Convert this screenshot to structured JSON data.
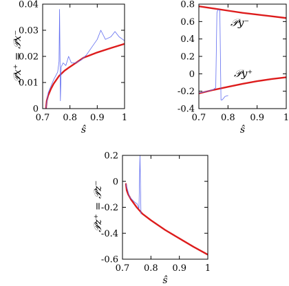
{
  "chart_data": [
    {
      "type": "line",
      "xlabel": "ŝ",
      "ylabel": "𝒫x⁺ = 𝒫x⁻",
      "xlim": [
        0.7,
        1.0
      ],
      "ylim": [
        0,
        0.04
      ],
      "xticks": [
        0.7,
        0.8,
        0.9,
        1.0
      ],
      "xtick_labels": [
        "0.7",
        "0.8",
        "0.9",
        "1"
      ],
      "yticks": [
        0,
        0.01,
        0.02,
        0.03,
        0.04
      ],
      "ytick_labels": [
        "0",
        "0.01",
        "0.02",
        "0.03",
        "0.04"
      ],
      "grid": false,
      "series": [
        {
          "color": "#dd1c1c",
          "width": 2.4,
          "x": [
            0.712,
            0.715,
            0.72,
            0.73,
            0.74,
            0.76,
            0.78,
            0.8,
            0.85,
            0.9,
            0.95,
            1.0
          ],
          "y": [
            0.0,
            0.003,
            0.005,
            0.0075,
            0.0095,
            0.0125,
            0.0145,
            0.016,
            0.0195,
            0.0215,
            0.0232,
            0.0248
          ]
        },
        {
          "color": "#5f6bf0",
          "width": 0.8,
          "x": [
            0.712,
            0.72,
            0.74,
            0.755,
            0.76,
            0.762,
            0.765,
            0.768,
            0.775,
            0.785,
            0.795,
            0.805,
            0.82,
            0.84,
            0.86,
            0.88,
            0.9,
            0.913,
            0.93,
            0.95,
            0.965,
            0.98,
            1.0
          ],
          "y": [
            0.0,
            0.006,
            0.011,
            0.014,
            0.018,
            0.038,
            0.003,
            0.016,
            0.0175,
            0.0165,
            0.02,
            0.0175,
            0.0175,
            0.0185,
            0.0205,
            0.0235,
            0.0265,
            0.03,
            0.0265,
            0.0275,
            0.0295,
            0.0275,
            0.026
          ]
        }
      ]
    },
    {
      "type": "line",
      "xlabel": "ŝ",
      "ylabel": "",
      "xlim": [
        0.7,
        1.0
      ],
      "ylim": [
        -0.4,
        0.8
      ],
      "xticks": [
        0.7,
        0.8,
        0.9,
        1.0
      ],
      "xtick_labels": [
        "0.7",
        "0.8",
        "0.9",
        "1"
      ],
      "yticks": [
        -0.4,
        -0.2,
        0,
        0.2,
        0.4,
        0.6,
        0.8
      ],
      "ytick_labels": [
        "-0.4",
        "-0.2",
        "0",
        "0.2",
        "0.4",
        "0.6",
        "0.8"
      ],
      "grid": false,
      "annotations": [
        "𝒫y⁻",
        "𝒫y⁺"
      ],
      "series": [
        {
          "color": "#dd1c1c",
          "width": 2.4,
          "x": [
            0.7,
            0.75,
            0.8,
            0.85,
            0.9,
            0.95,
            1.0
          ],
          "y": [
            0.775,
            0.75,
            0.725,
            0.7,
            0.68,
            0.66,
            0.64
          ]
        },
        {
          "color": "#dd1c1c",
          "width": 2.4,
          "x": [
            0.7,
            0.75,
            0.8,
            0.85,
            0.9,
            0.95,
            1.0
          ],
          "y": [
            -0.225,
            -0.185,
            -0.15,
            -0.115,
            -0.085,
            -0.06,
            -0.04
          ]
        },
        {
          "color": "#5f6bf0",
          "width": 0.8,
          "x": [
            0.7,
            0.73,
            0.75,
            0.758,
            0.762,
            0.765,
            0.772,
            0.776,
            0.78,
            0.79,
            0.8
          ],
          "y": [
            -0.22,
            -0.2,
            -0.18,
            -0.16,
            0.7,
            0.735,
            0.73,
            -0.3,
            -0.3,
            -0.26,
            -0.25
          ]
        }
      ]
    },
    {
      "type": "line",
      "xlabel": "ŝ",
      "ylabel": "𝒫z⁺ = 𝒫z⁻",
      "xlim": [
        0.7,
        1.0
      ],
      "ylim": [
        -0.6,
        0.2
      ],
      "xticks": [
        0.7,
        0.8,
        0.9,
        1.0
      ],
      "xtick_labels": [
        "0.7",
        "0.8",
        "0.9",
        "1"
      ],
      "yticks": [
        -0.6,
        -0.4,
        -0.2,
        0,
        0.2
      ],
      "ytick_labels": [
        "-0.6",
        "-0.4",
        "-0.2",
        "0",
        "0.2"
      ],
      "grid": false,
      "series": [
        {
          "color": "#dd1c1c",
          "width": 2.4,
          "x": [
            0.712,
            0.715,
            0.72,
            0.73,
            0.75,
            0.77,
            0.8,
            0.85,
            0.9,
            0.95,
            1.0
          ],
          "y": [
            -0.02,
            -0.07,
            -0.1,
            -0.14,
            -0.2,
            -0.25,
            -0.3,
            -0.375,
            -0.44,
            -0.505,
            -0.565
          ]
        },
        {
          "color": "#5f6bf0",
          "width": 0.8,
          "x": [
            0.712,
            0.725,
            0.74,
            0.752,
            0.758,
            0.7615,
            0.765
          ],
          "y": [
            -0.02,
            -0.12,
            -0.155,
            -0.175,
            -0.21,
            0.2,
            -0.25
          ]
        }
      ]
    }
  ]
}
